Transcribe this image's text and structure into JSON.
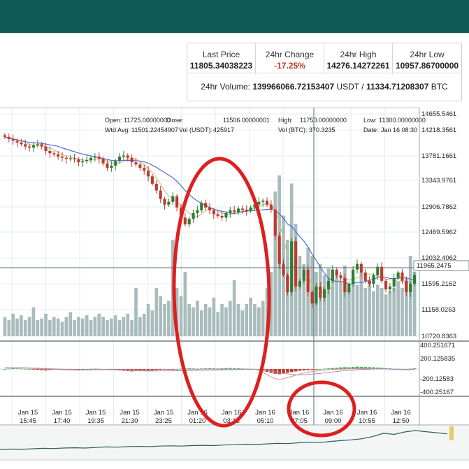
{
  "stats": {
    "last_price_label": "Last Price",
    "last_price": "11805.34038223",
    "change_label": "24hr Change",
    "change": "-17.25%",
    "high_label": "24hr High",
    "high": "14276.14272261",
    "low_label": "24hr Low",
    "low": "10957.86700000",
    "volume_label": "24hr Volume:",
    "volume_usdt": "139966066.72153407",
    "volume_usdt_unit": "USDT /",
    "volume_btc": "11334.71208307",
    "volume_btc_unit": "BTC"
  },
  "ohlc_info": {
    "open_label": "Open:",
    "open": "11725.00000000",
    "close_label": "Close:",
    "close": "11506.00000001",
    "high_label": "High:",
    "high": "11750.00000000",
    "low_label": "Low:",
    "low": "11300.00000000",
    "wavg_label": "Wtd Avg:",
    "wavg": "11501.22454907",
    "vol_usdt_label": "Vol (USDT):",
    "vol_usdt": "425917",
    "vol_btc_label": "Vol (BTC):",
    "vol_btc": "370.3235",
    "date_label": "Date:",
    "date": "Jan 16 08:30"
  },
  "colors": {
    "header": "#0e5a57",
    "candle_up": "#2e7d32",
    "candle_down": "#c0392b",
    "volume_bar": "#a9bcbc",
    "ma_slow": "#4a6fd8",
    "ma_fast": "#cfc28a",
    "crosshair": "#5a6e6e",
    "annotation": "#dd1f1f",
    "macd_pos": "#4caf50",
    "macd_neg": "#c0392b"
  },
  "chart_data": {
    "type": "candlestick",
    "price_axis_labels": [
      "14655.5461",
      "14218.3561",
      "13781.1661",
      "13343.9761",
      "12906.7862",
      "12469.5962",
      "12032.4062",
      "11595.2162",
      "11158.0263",
      "10720.8363"
    ],
    "crosshair_price": "11965.2475",
    "indicator_axis_labels": [
      "400.251671",
      "200.125835",
      "-200.12583",
      "-400.25167"
    ],
    "time_labels": [
      {
        "top": "Jan 15",
        "bottom": "15:45"
      },
      {
        "top": "Jan 15",
        "bottom": "17:40"
      },
      {
        "top": "Jan 15",
        "bottom": "19:35"
      },
      {
        "top": "Jan 15",
        "bottom": "21:30"
      },
      {
        "top": "Jan 15",
        "bottom": "23:25"
      },
      {
        "top": "Jan 16",
        "bottom": "01:20"
      },
      {
        "top": "Jan 16",
        "bottom": "03:15"
      },
      {
        "top": "Jan 16",
        "bottom": "05:10"
      },
      {
        "top": "Jan 16",
        "bottom": "07:05"
      },
      {
        "top": "Jan 16",
        "bottom": "09:00"
      },
      {
        "top": "Jan 16",
        "bottom": "10:55"
      },
      {
        "top": "Jan 16",
        "bottom": "12:50"
      }
    ],
    "y_range": [
      10720.8363,
      14655.5461
    ],
    "close": [
      14250,
      14210,
      14180,
      14150,
      14120,
      14080,
      14060,
      14100,
      14120,
      14080,
      14000,
      13960,
      13940,
      13900,
      13880,
      13860,
      13870,
      13850,
      13800,
      13820,
      13840,
      13880,
      13900,
      13860,
      13780,
      13700,
      13740,
      13820,
      13900,
      13920,
      13880,
      13800,
      13760,
      13700,
      13650,
      13550,
      13420,
      13300,
      13150,
      13050,
      13100,
      13200,
      13000,
      12820,
      12700,
      12800,
      12900,
      12950,
      13080,
      13000,
      12950,
      12880,
      12850,
      12820,
      12900,
      12950,
      12920,
      12980,
      12960,
      12940,
      13000,
      13050,
      13100,
      13120,
      13050,
      12960,
      12500,
      12000,
      11800,
      11500,
      12400,
      11600,
      11700,
      11900,
      11500,
      11300,
      11600,
      11400,
      11550,
      11700,
      11900,
      11800,
      11750,
      11500,
      11650,
      11900,
      12000,
      11850,
      11700,
      11650,
      11800,
      11950,
      11700,
      11550,
      11600,
      11750,
      11850,
      11700,
      11500,
      11650,
      11806
    ],
    "volume_rel": [
      0.12,
      0.1,
      0.14,
      0.11,
      0.13,
      0.1,
      0.12,
      0.18,
      0.1,
      0.11,
      0.14,
      0.1,
      0.12,
      0.11,
      0.09,
      0.12,
      0.15,
      0.1,
      0.12,
      0.11,
      0.13,
      0.1,
      0.12,
      0.14,
      0.12,
      0.1,
      0.11,
      0.13,
      0.1,
      0.12,
      0.14,
      0.1,
      0.3,
      0.12,
      0.14,
      0.2,
      0.16,
      0.3,
      0.25,
      0.2,
      0.22,
      0.6,
      0.3,
      0.25,
      0.4,
      0.2,
      0.18,
      0.22,
      0.16,
      0.2,
      0.18,
      0.24,
      0.15,
      0.2,
      0.18,
      0.22,
      0.35,
      0.2,
      0.16,
      0.2,
      0.24,
      0.2,
      0.18,
      0.22,
      0.3,
      0.4,
      0.9,
      1.0,
      0.75,
      0.6,
      0.95,
      0.7,
      0.5,
      0.45,
      0.55,
      0.5,
      0.4,
      0.45,
      0.38,
      0.42,
      0.36,
      0.4,
      0.34,
      0.44,
      0.3,
      0.36,
      0.32,
      0.4,
      0.3,
      0.34,
      0.28,
      0.32,
      0.3,
      0.26,
      0.28,
      0.3,
      0.34,
      0.3,
      0.36,
      0.5,
      0.4
    ],
    "macd_hist": [
      0,
      2,
      4,
      3,
      2,
      1,
      0,
      -2,
      -4,
      -6,
      -8,
      -6,
      -4,
      -3,
      -2,
      -4,
      -5,
      -3,
      -2,
      -1,
      0,
      1,
      2,
      1,
      0,
      -2,
      -4,
      -6,
      -8,
      -10,
      -12,
      -14,
      -12,
      -10,
      -9,
      -8,
      -6,
      -5,
      -4,
      -3,
      -2,
      -1,
      0,
      2,
      3,
      4,
      3,
      2,
      3,
      4,
      5,
      4,
      3,
      4,
      5,
      6,
      5,
      4,
      3,
      2,
      1,
      0,
      -4,
      -10,
      -16,
      -22,
      -28,
      -30,
      -26,
      -22,
      -18,
      -14,
      -10,
      -8,
      -6,
      -4,
      -2,
      0,
      2,
      4,
      6,
      8,
      10,
      11,
      10,
      12,
      14,
      13,
      12,
      11,
      10,
      9,
      8,
      6,
      4,
      2,
      1,
      0,
      -2,
      2,
      4
    ],
    "macd_line": [
      20,
      22,
      24,
      23,
      22,
      20,
      16,
      12,
      8,
      4,
      0,
      -4,
      -8,
      -10,
      -12,
      -14,
      -16,
      -18,
      -18,
      -16,
      -14,
      -12,
      -10,
      -8,
      -8,
      -10,
      -12,
      -14,
      -16,
      -18,
      -22,
      -26,
      -30,
      -32,
      -34,
      -36,
      -36,
      -34,
      -32,
      -30,
      -28,
      -26,
      -22,
      -18,
      -16,
      -14,
      -12,
      -12,
      -14,
      -14,
      -12,
      -10,
      -8,
      -6,
      -6,
      -8,
      -8,
      -6,
      -4,
      -2,
      -2,
      -6,
      -20,
      -60,
      -100,
      -140,
      -170,
      -180,
      -170,
      -150,
      -130,
      -110,
      -90,
      -70,
      -55,
      -45,
      -35,
      -25,
      -18,
      -12,
      -8,
      -4,
      -2,
      0,
      2,
      4,
      6,
      8,
      10,
      8,
      6,
      4,
      2,
      0,
      -2,
      -6,
      -10,
      -12,
      -14,
      -10,
      -6
    ],
    "macd_signal": [
      24,
      24,
      24,
      24,
      23,
      22,
      20,
      18,
      15,
      12,
      9,
      6,
      3,
      0,
      -3,
      -6,
      -8,
      -10,
      -12,
      -13,
      -14,
      -14,
      -13,
      -12,
      -11,
      -11,
      -11,
      -12,
      -13,
      -14,
      -15,
      -17,
      -19,
      -21,
      -23,
      -26,
      -28,
      -30,
      -31,
      -32,
      -32,
      -31,
      -30,
      -28,
      -26,
      -24,
      -22,
      -20,
      -19,
      -18,
      -17,
      -16,
      -15,
      -14,
      -12,
      -11,
      -10,
      -9,
      -8,
      -7,
      -6,
      -6,
      -8,
      -14,
      -24,
      -36,
      -50,
      -64,
      -76,
      -86,
      -94,
      -100,
      -102,
      -100,
      -96,
      -90,
      -84,
      -76,
      -68,
      -60,
      -52,
      -44,
      -36,
      -30,
      -24,
      -18,
      -14,
      -10,
      -6,
      -3,
      0,
      1,
      2,
      1,
      0,
      -1,
      -3,
      -5,
      -7,
      -8,
      -8
    ],
    "macd_range": [
      -420,
      420
    ],
    "sparkline": [
      0.3,
      0.32,
      0.31,
      0.33,
      0.35,
      0.34,
      0.36,
      0.37,
      0.36,
      0.38,
      0.4,
      0.39,
      0.41,
      0.42,
      0.41,
      0.43,
      0.44,
      0.43,
      0.45,
      0.46,
      0.45,
      0.47,
      0.48,
      0.5,
      0.49,
      0.51,
      0.53,
      0.52,
      0.55,
      0.57,
      0.56,
      0.6,
      0.63,
      0.66,
      0.7,
      0.78,
      0.9,
      0.86,
      0.95,
      1.0,
      0.96,
      0.92,
      0.88
    ]
  }
}
